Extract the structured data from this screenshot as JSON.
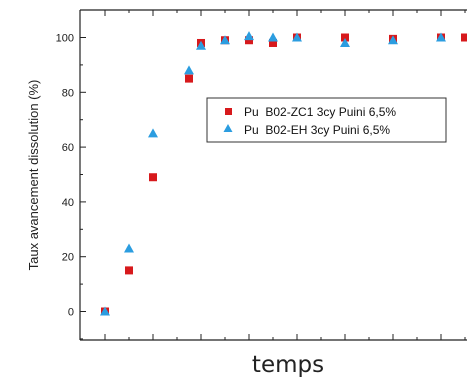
{
  "chart_data": {
    "type": "scatter",
    "xlabel": "temps",
    "ylabel": "Taux avancement dissolution (%)",
    "ylim": [
      -10,
      108
    ],
    "y_ticks": [
      0,
      20,
      40,
      60,
      80,
      100
    ],
    "y_tick_labels": [
      "0",
      "20",
      "40",
      "60",
      "80",
      "100"
    ],
    "x_tick_count": 16,
    "grid": false,
    "legend_position": "center-right",
    "series": [
      {
        "name": "Pu  B02-ZC1 3cy Puini 6,5%",
        "marker": "square",
        "color": "#d7191c",
        "points": [
          [
            0,
            0
          ],
          [
            1,
            15
          ],
          [
            2,
            49
          ],
          [
            3.5,
            85
          ],
          [
            4,
            98
          ],
          [
            5,
            99
          ],
          [
            6,
            99
          ],
          [
            7,
            98
          ],
          [
            8,
            100
          ],
          [
            10,
            100
          ],
          [
            12,
            99.5
          ],
          [
            14,
            100
          ],
          [
            15,
            100
          ]
        ]
      },
      {
        "name": "Pu  B02-EH 3cy Puini 6,5%",
        "marker": "triangle",
        "color": "#2b9de0",
        "points": [
          [
            0,
            0
          ],
          [
            1,
            23
          ],
          [
            2,
            65
          ],
          [
            3.5,
            88
          ],
          [
            4,
            97
          ],
          [
            5,
            99
          ],
          [
            6,
            100.5
          ],
          [
            7,
            100
          ],
          [
            8,
            100
          ],
          [
            10,
            98
          ],
          [
            12,
            99
          ],
          [
            14,
            100
          ]
        ]
      }
    ]
  }
}
